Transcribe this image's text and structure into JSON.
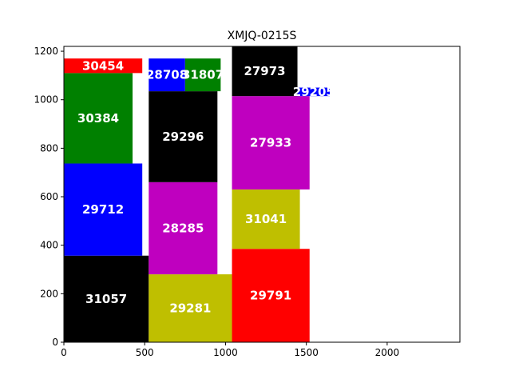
{
  "chart_data": {
    "type": "treemap",
    "title": "XMJQ-0215S",
    "xlabel": "",
    "ylabel": "",
    "xlim": [
      0,
      2450
    ],
    "ylim": [
      0,
      1220
    ],
    "xticks": [
      0,
      500,
      1000,
      1500,
      2000
    ],
    "yticks": [
      0,
      200,
      400,
      600,
      800,
      1000,
      1200
    ],
    "grid": false,
    "legend": "none",
    "rects": [
      {
        "label": "31057",
        "x0": 0,
        "x1": 525,
        "y0": 0,
        "y1": 357,
        "color": "#000000"
      },
      {
        "label": "29712",
        "x0": 0,
        "x1": 485,
        "y0": 357,
        "y1": 737,
        "color": "#0000ff"
      },
      {
        "label": "30384",
        "x0": 0,
        "x1": 425,
        "y0": 737,
        "y1": 1110,
        "color": "#008000"
      },
      {
        "label": "30454",
        "x0": 0,
        "x1": 485,
        "y0": 1110,
        "y1": 1170,
        "color": "#ff0000"
      },
      {
        "label": "29281",
        "x0": 525,
        "x1": 1040,
        "y0": 0,
        "y1": 280,
        "color": "#bfbf00"
      },
      {
        "label": "28285",
        "x0": 525,
        "x1": 950,
        "y0": 280,
        "y1": 660,
        "color": "#bf00bf"
      },
      {
        "label": "29296",
        "x0": 525,
        "x1": 950,
        "y0": 660,
        "y1": 1035,
        "color": "#000000"
      },
      {
        "label": "28708",
        "x0": 525,
        "x1": 750,
        "y0": 1035,
        "y1": 1170,
        "color": "#0000ff"
      },
      {
        "label": "31807",
        "x0": 750,
        "x1": 970,
        "y0": 1035,
        "y1": 1170,
        "color": "#008000"
      },
      {
        "label": "29791",
        "x0": 1040,
        "x1": 1520,
        "y0": 0,
        "y1": 385,
        "color": "#ff0000"
      },
      {
        "label": "31041",
        "x0": 1040,
        "x1": 1460,
        "y0": 385,
        "y1": 630,
        "color": "#bfbf00"
      },
      {
        "label": "27933",
        "x0": 1040,
        "x1": 1520,
        "y0": 630,
        "y1": 1015,
        "color": "#bf00bf"
      },
      {
        "label": "27973",
        "x0": 1040,
        "x1": 1445,
        "y0": 1015,
        "y1": 1220,
        "color": "#000000"
      },
      {
        "label": "29205",
        "x0": 1445,
        "x1": 1645,
        "y0": 1015,
        "y1": 1050,
        "color": "#0000ff"
      }
    ]
  }
}
